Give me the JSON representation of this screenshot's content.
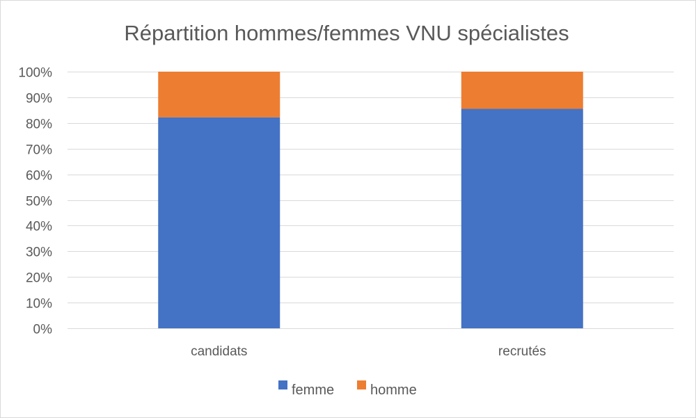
{
  "chart_data": {
    "type": "bar",
    "stacked": true,
    "title": "Répartition hommes/femmes VNU spécialistes",
    "categories": [
      "candidats",
      "recrutés"
    ],
    "series": [
      {
        "name": "femme",
        "values": [
          82.2,
          85.5
        ],
        "color": "#4472C4"
      },
      {
        "name": "homme",
        "values": [
          17.8,
          14.5
        ],
        "color": "#ED7D31"
      }
    ],
    "ylim": [
      0,
      100
    ],
    "yticks": [
      "0%",
      "10%",
      "20%",
      "30%",
      "40%",
      "50%",
      "60%",
      "70%",
      "80%",
      "90%",
      "100%"
    ],
    "grid": true,
    "legend_position": "bottom"
  }
}
